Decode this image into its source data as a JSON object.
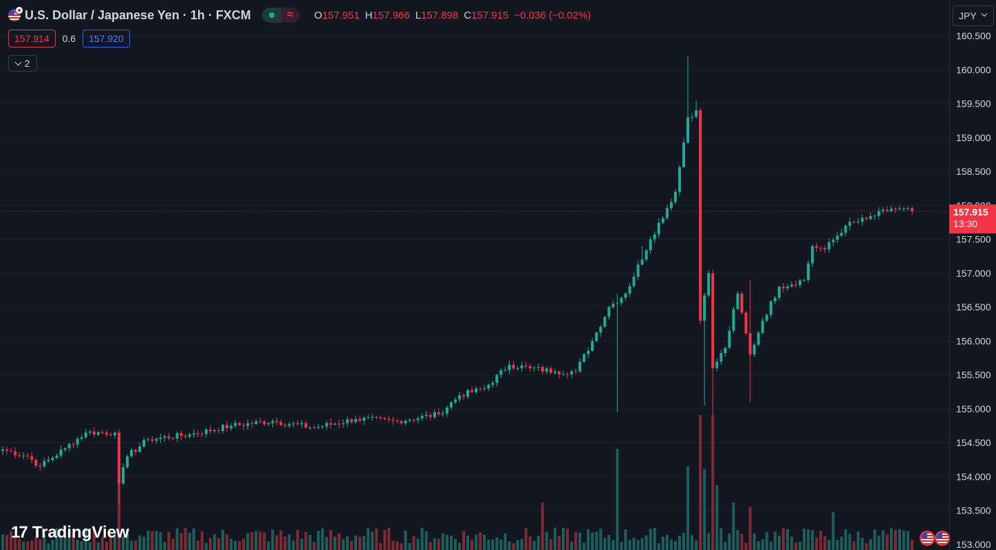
{
  "header": {
    "title": "U.S. Dollar / Japanese Yen · 1h · FXCM",
    "ohlc": [
      {
        "k": "O",
        "v": "157.951"
      },
      {
        "k": "H",
        "v": "157.966"
      },
      {
        "k": "L",
        "v": "157.898"
      },
      {
        "k": "C",
        "v": "157.915"
      }
    ],
    "change": "−0.036 (−0.02%)",
    "status_icon": "market-open-dot",
    "wave_icon": "≈"
  },
  "trade": {
    "sell": "157.914",
    "spread": "0.6",
    "buy": "157.920"
  },
  "indicators_toggle": {
    "count": "2"
  },
  "price_axis": {
    "currency": "JPY"
  },
  "last_price": {
    "price": "157.915",
    "countdown": "13:30"
  },
  "branding": {
    "name": "TradingView"
  },
  "colors": {
    "background": "#131722",
    "up": "#22ab94",
    "down": "#f23645",
    "vol_up": "#1d5f5a",
    "vol_down": "#7f2b35",
    "last_line": "#f23645"
  },
  "chart_data": {
    "type": "candlestick",
    "symbol": "USD/JPY",
    "timeframe": "1h",
    "ylim": [
      153.0,
      160.75
    ],
    "y_ticks": [
      "160.500",
      "160.000",
      "159.500",
      "159.000",
      "158.500",
      "158.000",
      "157.500",
      "157.000",
      "156.500",
      "156.000",
      "155.500",
      "155.000",
      "154.500",
      "154.000",
      "153.500",
      "153.000"
    ],
    "anchors": [
      {
        "i": 0,
        "p": 154.4
      },
      {
        "i": 6,
        "p": 154.3
      },
      {
        "i": 9,
        "p": 154.15
      },
      {
        "i": 15,
        "p": 154.42
      },
      {
        "i": 20,
        "p": 154.65
      },
      {
        "i": 27,
        "p": 154.65
      },
      {
        "i": 28,
        "p": 153.9
      },
      {
        "i": 30,
        "p": 154.3
      },
      {
        "i": 35,
        "p": 154.55
      },
      {
        "i": 45,
        "p": 154.62
      },
      {
        "i": 55,
        "p": 154.75
      },
      {
        "i": 65,
        "p": 154.82
      },
      {
        "i": 75,
        "p": 154.72
      },
      {
        "i": 85,
        "p": 154.85
      },
      {
        "i": 95,
        "p": 154.82
      },
      {
        "i": 105,
        "p": 154.92
      },
      {
        "i": 110,
        "p": 155.2
      },
      {
        "i": 116,
        "p": 155.3
      },
      {
        "i": 122,
        "p": 155.65
      },
      {
        "i": 127,
        "p": 155.6
      },
      {
        "i": 133,
        "p": 155.55
      },
      {
        "i": 138,
        "p": 155.55
      },
      {
        "i": 142,
        "p": 156.0
      },
      {
        "i": 146,
        "p": 156.5
      },
      {
        "i": 150,
        "p": 156.7
      },
      {
        "i": 156,
        "p": 157.5
      },
      {
        "i": 162,
        "p": 158.2
      },
      {
        "i": 165,
        "p": 159.3
      },
      {
        "i": 167,
        "p": 159.4
      },
      {
        "i": 168,
        "p": 156.3
      },
      {
        "i": 170,
        "p": 157.0
      },
      {
        "i": 171,
        "p": 155.6
      },
      {
        "i": 174,
        "p": 155.9
      },
      {
        "i": 177,
        "p": 156.7
      },
      {
        "i": 180,
        "p": 155.8
      },
      {
        "i": 183,
        "p": 156.3
      },
      {
        "i": 187,
        "p": 156.8
      },
      {
        "i": 193,
        "p": 156.9
      },
      {
        "i": 195,
        "p": 157.4
      },
      {
        "i": 198,
        "p": 157.35
      },
      {
        "i": 203,
        "p": 157.7
      },
      {
        "i": 208,
        "p": 157.8
      },
      {
        "i": 214,
        "p": 157.95
      },
      {
        "i": 219,
        "p": 157.915
      }
    ],
    "spikes": [
      {
        "i": 28,
        "low": 153.6,
        "high": 154.7
      },
      {
        "i": 148,
        "low": 154.95,
        "high": 156.7
      },
      {
        "i": 165,
        "high": 160.2
      },
      {
        "i": 167,
        "high": 159.55
      },
      {
        "i": 169,
        "low": 155.05
      },
      {
        "i": 171,
        "low": 154.9
      },
      {
        "i": 180,
        "low": 155.1,
        "high": 156.9
      },
      {
        "i": 154,
        "high": 157.4
      }
    ],
    "volume": {
      "base": 0.12,
      "spikes": [
        {
          "i": 28,
          "v": 0.55
        },
        {
          "i": 148,
          "v": 0.75
        },
        {
          "i": 165,
          "v": 0.62
        },
        {
          "i": 168,
          "v": 1.0
        },
        {
          "i": 169,
          "v": 0.6
        },
        {
          "i": 171,
          "v": 1.0
        },
        {
          "i": 172,
          "v": 0.48
        },
        {
          "i": 176,
          "v": 0.35
        },
        {
          "i": 130,
          "v": 0.35
        },
        {
          "i": 180,
          "v": 0.32
        },
        {
          "i": 200,
          "v": 0.28
        }
      ]
    },
    "last_price": 157.915
  }
}
